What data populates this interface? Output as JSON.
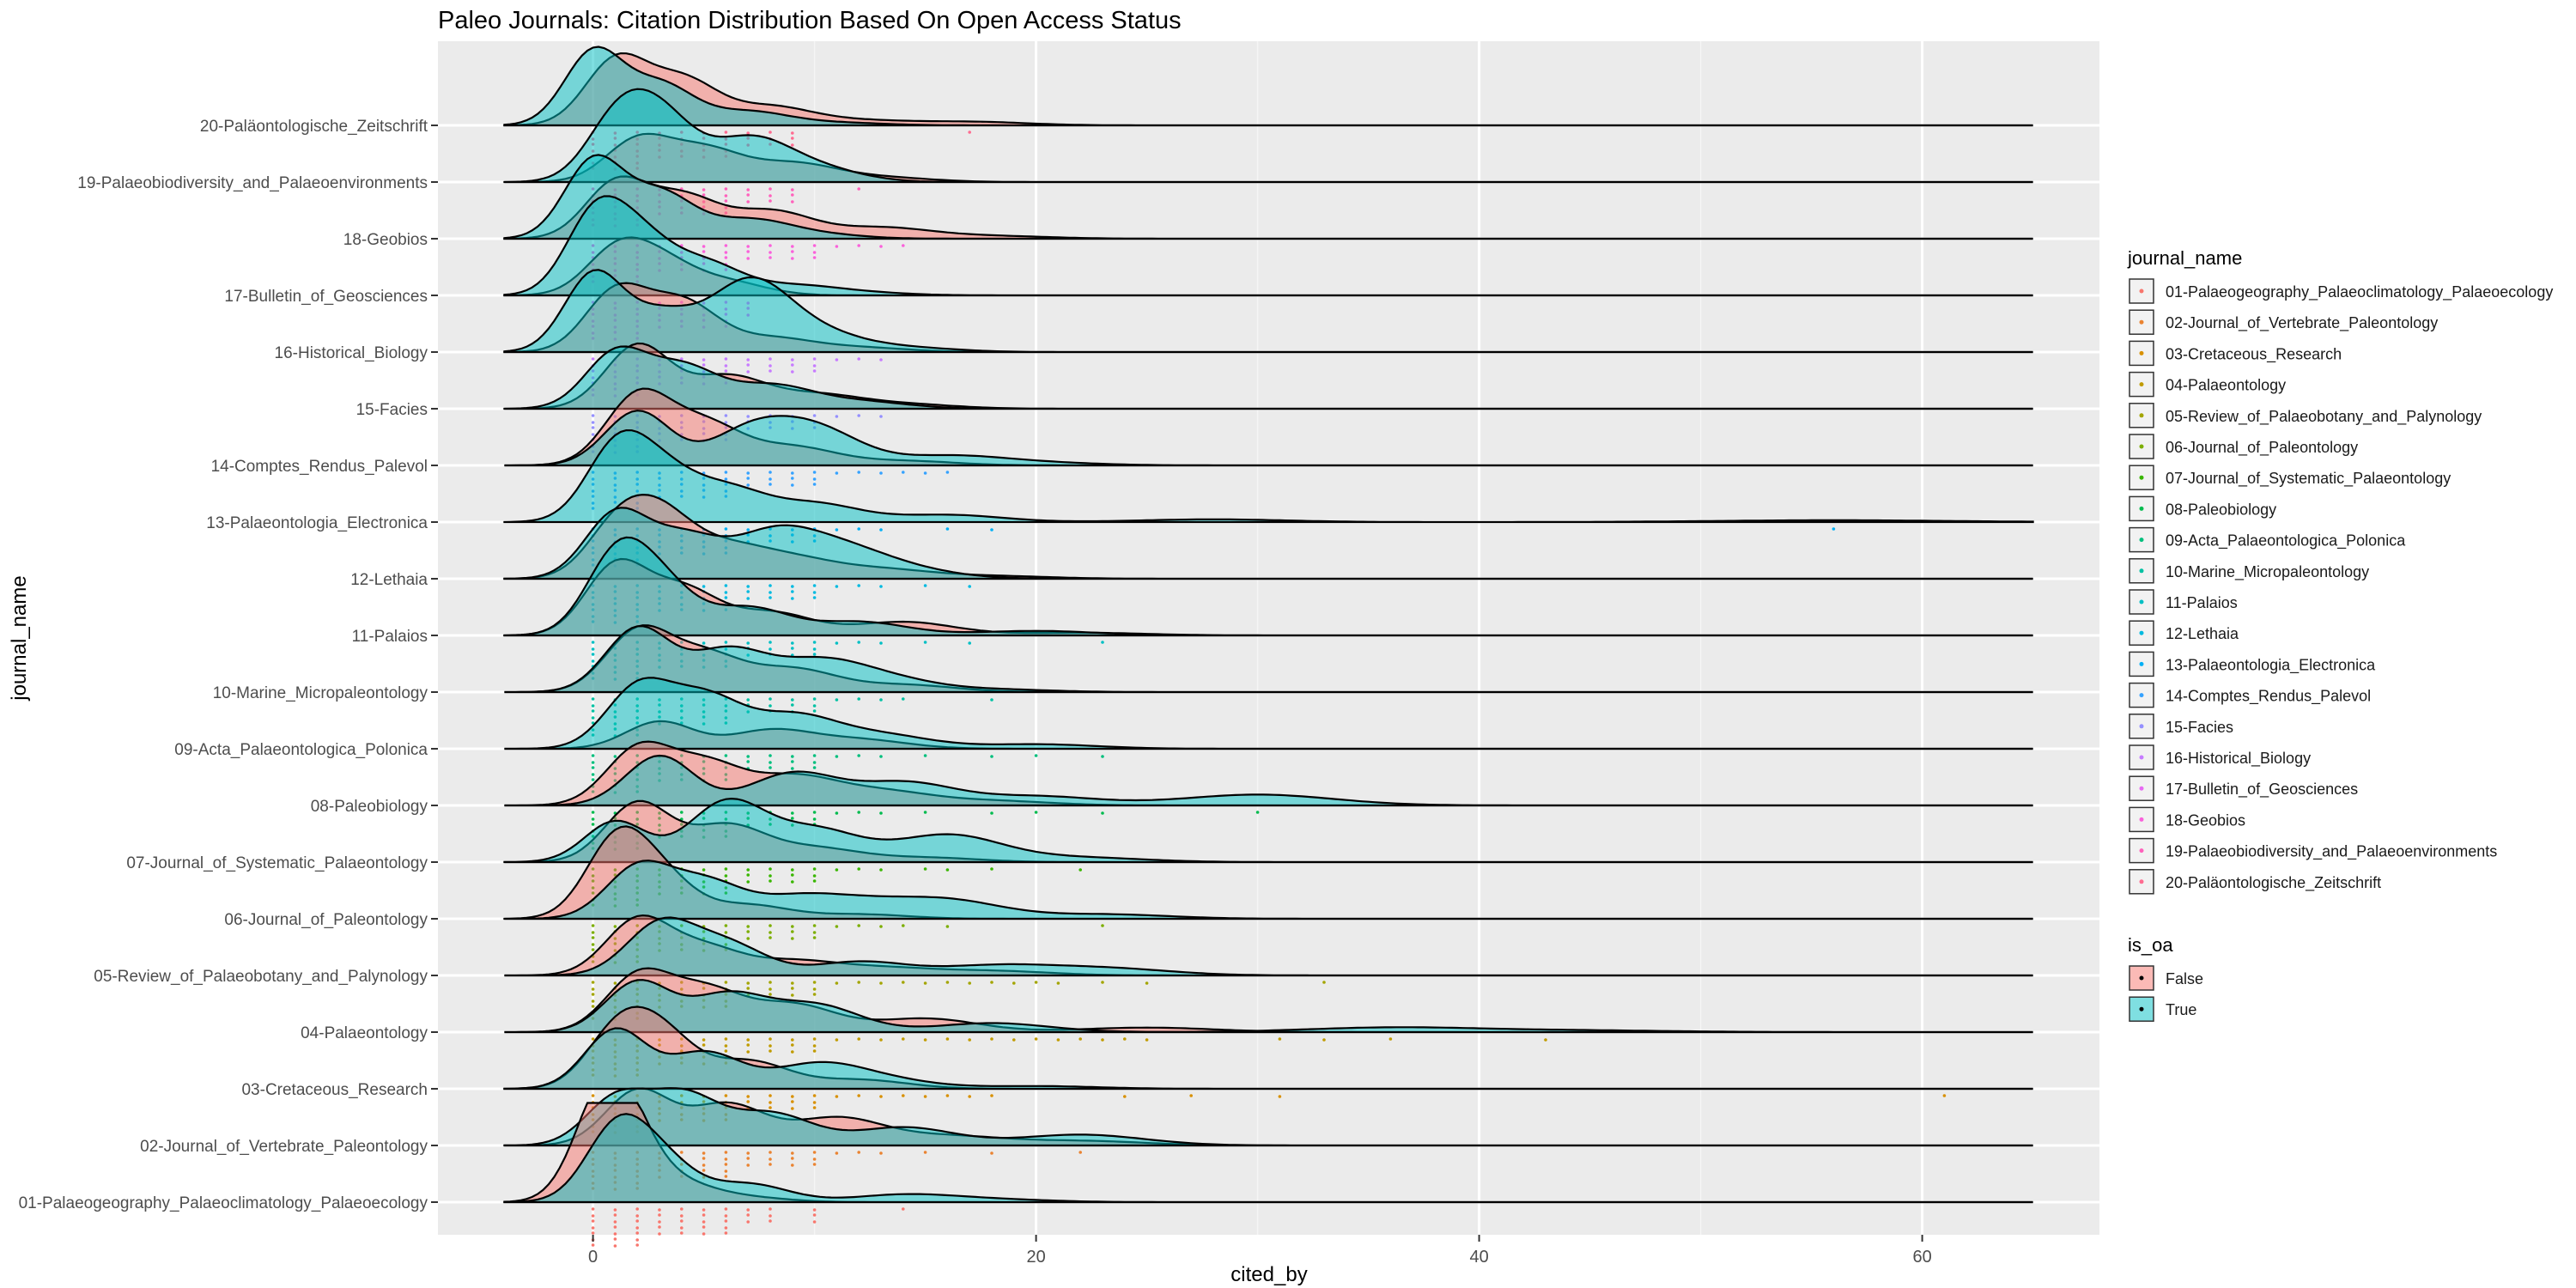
{
  "chart_data": {
    "type": "ridgeline",
    "title": "Paleo Journals: Citation Distribution Based On Open Access Status",
    "xlabel": "cited_by",
    "ylabel": "journal_name",
    "xlim": [
      -7,
      68
    ],
    "x_ticks": [
      0,
      20,
      40,
      60
    ],
    "grid": true,
    "legend_position": "right",
    "journal_legend_title": "journal_name",
    "oa_legend_title": "is_oa",
    "oa_categories": [
      {
        "name": "False",
        "color": "#F8766D"
      },
      {
        "name": "True",
        "color": "#00BFC4"
      }
    ],
    "journal_colors": [
      "#F8766D",
      "#EA8331",
      "#D89000",
      "#C09B00",
      "#A3A500",
      "#7CAE00",
      "#39B600",
      "#00BB4E",
      "#00BF7D",
      "#00C1A3",
      "#00BFC4",
      "#00BAE0",
      "#00B0F6",
      "#35A2FF",
      "#9590FF",
      "#C77CFF",
      "#E76BF3",
      "#FA62DB",
      "#FF62BC",
      "#FF6C91"
    ],
    "journals": [
      {
        "name": "01-Palaeogeography_Palaeoclimatology_Palaeoecology",
        "density_false": [
          [
            0.5,
            1.0
          ],
          [
            1.5,
            0.55
          ],
          [
            4,
            0.18
          ],
          [
            7,
            0.05
          ]
        ],
        "density_true": [
          [
            1,
            0.75
          ],
          [
            3,
            0.45
          ],
          [
            7,
            0.2
          ],
          [
            14,
            0.08
          ],
          [
            18,
            0.03
          ]
        ],
        "points": [
          0,
          1,
          2,
          3,
          4,
          5,
          6,
          7,
          8,
          10,
          14
        ]
      },
      {
        "name": "02-Journal_of_Vertebrate_Paleontology",
        "density_false": [
          [
            2,
            0.6
          ],
          [
            6,
            0.45
          ],
          [
            11,
            0.3
          ],
          [
            16,
            0.1
          ],
          [
            22,
            0.05
          ]
        ],
        "density_true": [
          [
            1,
            0.5
          ],
          [
            4,
            0.55
          ],
          [
            8,
            0.35
          ],
          [
            14,
            0.2
          ],
          [
            22,
            0.12
          ]
        ],
        "points": [
          0,
          1,
          2,
          3,
          4,
          5,
          6,
          7,
          8,
          9,
          10,
          11,
          12,
          13,
          15,
          18,
          22
        ]
      },
      {
        "name": "03-Cretaceous_Research",
        "density_false": [
          [
            1,
            0.55
          ],
          [
            3,
            0.6
          ],
          [
            7,
            0.3
          ],
          [
            12,
            0.1
          ]
        ],
        "density_true": [
          [
            1,
            0.65
          ],
          [
            5,
            0.4
          ],
          [
            10,
            0.25
          ],
          [
            13,
            0.1
          ],
          [
            20,
            0.03
          ]
        ],
        "points": [
          0,
          1,
          2,
          3,
          4,
          5,
          6,
          7,
          8,
          9,
          10,
          11,
          12,
          13,
          14,
          15,
          16,
          17,
          18,
          24,
          27,
          31,
          61
        ]
      },
      {
        "name": "04-Palaeontology",
        "density_false": [
          [
            2,
            0.6
          ],
          [
            5,
            0.45
          ],
          [
            9,
            0.3
          ],
          [
            15,
            0.15
          ],
          [
            25,
            0.05
          ]
        ],
        "density_true": [
          [
            2,
            0.55
          ],
          [
            6,
            0.4
          ],
          [
            10,
            0.3
          ],
          [
            18,
            0.1
          ],
          [
            36,
            0.05
          ],
          [
            44,
            0.02
          ]
        ],
        "points": [
          0,
          1,
          2,
          3,
          4,
          5,
          6,
          7,
          8,
          9,
          10,
          11,
          12,
          13,
          14,
          15,
          16,
          17,
          18,
          19,
          20,
          21,
          22,
          23,
          24,
          25,
          31,
          33,
          36,
          43
        ]
      },
      {
        "name": "05-Review_of_Palaeobotany_and_Palynology",
        "density_false": [
          [
            2,
            0.6
          ],
          [
            5,
            0.3
          ],
          [
            9,
            0.15
          ],
          [
            13,
            0.08
          ],
          [
            18,
            0.05
          ]
        ],
        "density_true": [
          [
            3,
            0.55
          ],
          [
            6,
            0.35
          ],
          [
            12,
            0.15
          ],
          [
            18,
            0.1
          ],
          [
            23,
            0.08
          ]
        ],
        "points": [
          0,
          1,
          2,
          3,
          4,
          5,
          6,
          7,
          8,
          9,
          10,
          11,
          12,
          13,
          14,
          15,
          16,
          17,
          18,
          19,
          20,
          21,
          23,
          25,
          33
        ]
      },
      {
        "name": "06-Journal_of_Paleontology",
        "density_false": [
          [
            1,
            0.8
          ],
          [
            3,
            0.45
          ],
          [
            7,
            0.15
          ],
          [
            12,
            0.05
          ]
        ],
        "density_true": [
          [
            2,
            0.55
          ],
          [
            5,
            0.4
          ],
          [
            9,
            0.2
          ],
          [
            12,
            0.15
          ],
          [
            16,
            0.2
          ],
          [
            23,
            0.05
          ]
        ],
        "points": [
          0,
          1,
          2,
          3,
          4,
          5,
          6,
          7,
          8,
          9,
          10,
          11,
          12,
          13,
          14,
          16,
          23
        ]
      },
      {
        "name": "07-Journal_of_Systematic_Palaeontology",
        "density_false": [
          [
            2,
            0.65
          ],
          [
            6,
            0.4
          ],
          [
            10,
            0.15
          ],
          [
            15,
            0.05
          ]
        ],
        "density_true": [
          [
            1,
            0.45
          ],
          [
            6,
            0.65
          ],
          [
            10,
            0.35
          ],
          [
            16,
            0.3
          ],
          [
            22,
            0.05
          ]
        ],
        "points": [
          0,
          1,
          2,
          3,
          4,
          5,
          6,
          7,
          8,
          9,
          10,
          11,
          12,
          13,
          15,
          16,
          18,
          22
        ]
      },
      {
        "name": "08-Paleobiology",
        "density_false": [
          [
            2,
            0.6
          ],
          [
            5,
            0.45
          ],
          [
            9,
            0.3
          ],
          [
            13,
            0.15
          ],
          [
            18,
            0.05
          ]
        ],
        "density_true": [
          [
            3,
            0.55
          ],
          [
            9,
            0.35
          ],
          [
            14,
            0.25
          ],
          [
            20,
            0.1
          ],
          [
            30,
            0.12
          ]
        ],
        "points": [
          0,
          1,
          2,
          3,
          4,
          5,
          6,
          7,
          8,
          9,
          10,
          11,
          12,
          13,
          15,
          18,
          20,
          23,
          30
        ]
      },
      {
        "name": "09-Acta_Palaeontologica_Polonica",
        "density_false": [
          [
            3,
            0.3
          ],
          [
            8,
            0.2
          ],
          [
            12,
            0.1
          ]
        ],
        "density_true": [
          [
            2,
            0.65
          ],
          [
            5,
            0.55
          ],
          [
            9,
            0.35
          ],
          [
            13,
            0.15
          ],
          [
            20,
            0.05
          ]
        ],
        "points": [
          0,
          1,
          2,
          3,
          4,
          5,
          6,
          7,
          8,
          9,
          10,
          11,
          12,
          13,
          15,
          18,
          20,
          23
        ]
      },
      {
        "name": "10-Marine_Micropaleontology",
        "density_false": [
          [
            2,
            0.65
          ],
          [
            5,
            0.4
          ],
          [
            9,
            0.25
          ],
          [
            14,
            0.08
          ]
        ],
        "density_true": [
          [
            2,
            0.7
          ],
          [
            6,
            0.45
          ],
          [
            10,
            0.3
          ],
          [
            13,
            0.15
          ],
          [
            18,
            0.03
          ]
        ],
        "points": [
          0,
          1,
          2,
          3,
          4,
          5,
          6,
          7,
          8,
          9,
          10,
          11,
          12,
          13,
          14,
          18
        ]
      },
      {
        "name": "11-Palaios",
        "density_false": [
          [
            1,
            0.75
          ],
          [
            4,
            0.5
          ],
          [
            8,
            0.25
          ],
          [
            14,
            0.15
          ],
          [
            22,
            0.03
          ]
        ],
        "density_true": [
          [
            1,
            0.8
          ],
          [
            3,
            0.55
          ],
          [
            7,
            0.3
          ],
          [
            12,
            0.15
          ],
          [
            20,
            0.05
          ]
        ],
        "points": [
          0,
          1,
          2,
          3,
          4,
          5,
          6,
          7,
          8,
          9,
          10,
          11,
          12,
          13,
          15,
          17,
          23
        ]
      },
      {
        "name": "12-Lethaia",
        "density_false": [
          [
            1,
            0.5
          ],
          [
            3,
            0.65
          ],
          [
            6,
            0.3
          ],
          [
            9,
            0.2
          ],
          [
            13,
            0.1
          ],
          [
            18,
            0.03
          ]
        ],
        "density_true": [
          [
            1,
            0.7
          ],
          [
            4,
            0.45
          ],
          [
            8,
            0.45
          ],
          [
            11,
            0.3
          ],
          [
            14,
            0.1
          ]
        ],
        "points": [
          0,
          1,
          2,
          3,
          4,
          5,
          6,
          7,
          8,
          9,
          10,
          11,
          12,
          13,
          15,
          17
        ]
      },
      {
        "name": "13-Palaeontologia_Electronica",
        "density_false": [],
        "density_true": [
          [
            1,
            0.75
          ],
          [
            3,
            0.5
          ],
          [
            6,
            0.35
          ],
          [
            10,
            0.2
          ],
          [
            16,
            0.08
          ],
          [
            28,
            0.03
          ],
          [
            56,
            0.02
          ]
        ],
        "points": [
          0,
          1,
          2,
          3,
          4,
          5,
          6,
          7,
          8,
          9,
          10,
          11,
          12,
          13,
          16,
          18,
          56
        ]
      },
      {
        "name": "14-Comptes_Rendus_Palevol",
        "density_false": [
          [
            2,
            0.75
          ],
          [
            5,
            0.45
          ],
          [
            9,
            0.2
          ],
          [
            14,
            0.05
          ]
        ],
        "density_true": [
          [
            2,
            0.6
          ],
          [
            7,
            0.35
          ],
          [
            10,
            0.4
          ],
          [
            16,
            0.1
          ],
          [
            20,
            0.03
          ]
        ],
        "points": [
          0,
          1,
          2,
          3,
          4,
          5,
          6,
          7,
          8,
          9,
          10,
          11,
          12,
          13,
          14,
          15,
          16
        ]
      },
      {
        "name": "15-Facies",
        "density_false": [
          [
            2,
            0.7
          ],
          [
            6,
            0.35
          ],
          [
            10,
            0.15
          ],
          [
            14,
            0.05
          ]
        ],
        "density_true": [
          [
            1,
            0.6
          ],
          [
            4,
            0.45
          ],
          [
            8,
            0.25
          ],
          [
            12,
            0.08
          ]
        ],
        "points": [
          0,
          1,
          2,
          3,
          4,
          5,
          6,
          7,
          8,
          9,
          10,
          11,
          12,
          13
        ]
      },
      {
        "name": "16-Historical_Biology",
        "density_false": [
          [
            1,
            0.65
          ],
          [
            4,
            0.55
          ],
          [
            8,
            0.15
          ],
          [
            12,
            0.05
          ]
        ],
        "density_true": [
          [
            0,
            0.85
          ],
          [
            3,
            0.4
          ],
          [
            7,
            0.75
          ],
          [
            10,
            0.2
          ],
          [
            14,
            0.05
          ]
        ],
        "points": [
          0,
          1,
          2,
          3,
          4,
          5,
          6,
          7,
          8,
          9,
          10,
          11,
          12,
          13
        ]
      },
      {
        "name": "17-Bulletin_of_Geosciences",
        "density_false": [
          [
            1,
            0.45
          ],
          [
            3,
            0.35
          ],
          [
            6,
            0.15
          ]
        ],
        "density_true": [
          [
            0,
            0.8
          ],
          [
            2,
            0.6
          ],
          [
            5,
            0.35
          ],
          [
            9,
            0.1
          ],
          [
            12,
            0.03
          ]
        ],
        "points": [
          0,
          1,
          2,
          3,
          4,
          5,
          6,
          7
        ]
      },
      {
        "name": "18-Geobios",
        "density_false": [
          [
            1,
            0.6
          ],
          [
            4,
            0.45
          ],
          [
            8,
            0.3
          ],
          [
            13,
            0.12
          ],
          [
            18,
            0.03
          ]
        ],
        "density_true": [
          [
            0,
            0.85
          ],
          [
            3,
            0.5
          ],
          [
            7,
            0.2
          ],
          [
            10,
            0.05
          ]
        ],
        "points": [
          0,
          1,
          2,
          3,
          4,
          5,
          6,
          7,
          8,
          9,
          10,
          11,
          12,
          13,
          14
        ]
      },
      {
        "name": "19-Palaeobiodiversity_and_Palaeoenvironments",
        "density_false": [
          [
            2,
            0.45
          ],
          [
            5,
            0.35
          ],
          [
            9,
            0.2
          ],
          [
            13,
            0.05
          ]
        ],
        "density_true": [
          [
            1,
            0.6
          ],
          [
            3,
            0.7
          ],
          [
            7,
            0.45
          ],
          [
            10,
            0.15
          ]
        ],
        "points": [
          0,
          1,
          2,
          3,
          4,
          5,
          6,
          7,
          8,
          9,
          12
        ]
      },
      {
        "name": "20-Paläontologische_Zeitschrift",
        "density_false": [
          [
            1,
            0.7
          ],
          [
            4,
            0.5
          ],
          [
            8,
            0.2
          ],
          [
            12,
            0.05
          ],
          [
            17,
            0.04
          ]
        ],
        "density_true": [
          [
            0,
            0.8
          ],
          [
            3,
            0.45
          ],
          [
            7,
            0.15
          ],
          [
            11,
            0.03
          ]
        ],
        "points": [
          0,
          1,
          2,
          3,
          4,
          5,
          6,
          7,
          8,
          9,
          17
        ]
      }
    ]
  }
}
